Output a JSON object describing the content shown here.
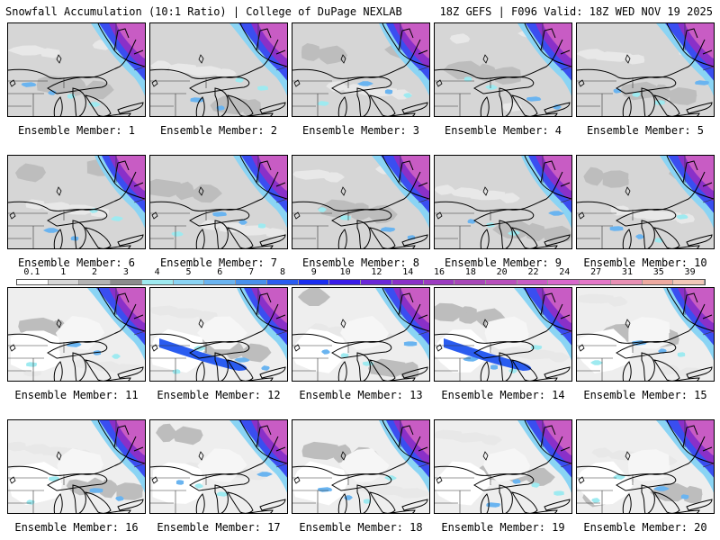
{
  "header": {
    "left": "Snowfall Accumulation (10:1 Ratio) | College of DuPage NEXLAB",
    "right": "18Z GEFS | F096 Valid: 18Z WED NOV 19 2025"
  },
  "legend": {
    "labels": [
      "0.1",
      "1",
      "2",
      "3",
      "4",
      "5",
      "6",
      "7",
      "8",
      "9",
      "10",
      "12",
      "14",
      "16",
      "18",
      "20",
      "22",
      "24",
      "27",
      "31",
      "35",
      "39"
    ],
    "colors": [
      "#ffffff",
      "#d8d8d8",
      "#b4b4b4",
      "#8c8c8c",
      "#9eeaf0",
      "#8ad4f4",
      "#6ab4f0",
      "#4890ec",
      "#2a5cf0",
      "#1a2ef0",
      "#3a1ce8",
      "#6a28d8",
      "#8a30c8",
      "#9c3cc0",
      "#a848b8",
      "#b850bc",
      "#c85cc4",
      "#d868cc",
      "#e478c8",
      "#e890b4",
      "#eeaaa0",
      "#f2c8b8"
    ]
  },
  "panels": [
    {
      "label": "Ensemble Member: 1"
    },
    {
      "label": "Ensemble Member: 2"
    },
    {
      "label": "Ensemble Member: 3"
    },
    {
      "label": "Ensemble Member: 4"
    },
    {
      "label": "Ensemble Member: 5"
    },
    {
      "label": "Ensemble Member: 6"
    },
    {
      "label": "Ensemble Member: 7"
    },
    {
      "label": "Ensemble Member: 8"
    },
    {
      "label": "Ensemble Member: 9"
    },
    {
      "label": "Ensemble Member: 10"
    },
    {
      "label": "Ensemble Member: 11"
    },
    {
      "label": "Ensemble Member: 12"
    },
    {
      "label": "Ensemble Member: 13"
    },
    {
      "label": "Ensemble Member: 14"
    },
    {
      "label": "Ensemble Member: 15"
    },
    {
      "label": "Ensemble Member: 16"
    },
    {
      "label": "Ensemble Member: 17"
    },
    {
      "label": "Ensemble Member: 18"
    },
    {
      "label": "Ensemble Member: 19"
    },
    {
      "label": "Ensemble Member: 20"
    }
  ]
}
